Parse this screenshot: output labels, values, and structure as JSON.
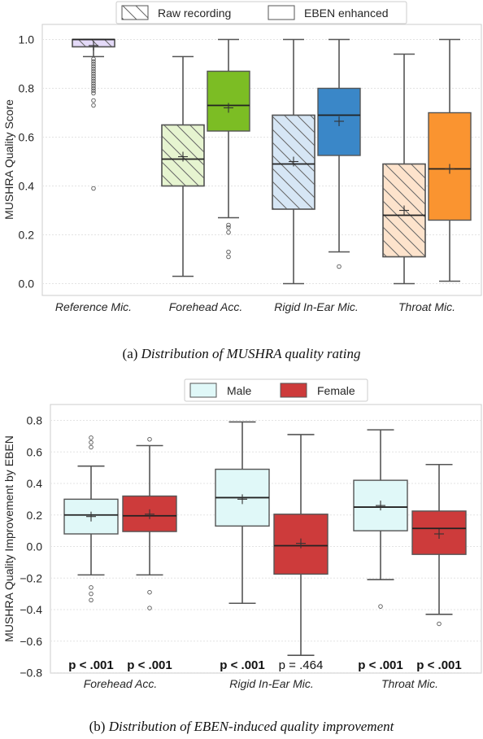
{
  "chart_data": [
    {
      "type": "box",
      "title": "",
      "caption_prefix": "(a)",
      "caption": "Distribution of MUSHRA quality rating",
      "ylabel": "MUSHRA Quality Score",
      "xlabel": "",
      "ylim": [
        -0.03,
        1.03
      ],
      "yticks": [
        "0.0",
        "0.2",
        "0.4",
        "0.6",
        "0.8",
        "1.0"
      ],
      "grid": true,
      "legend_position": "top-center",
      "categories": [
        "Reference Mic.",
        "Forehead Acc.",
        "Rigid In-Ear Mic.",
        "Throat Mic."
      ],
      "series": [
        {
          "name": "Raw recording",
          "hatched": true
        },
        {
          "name": "EBEN enhanced",
          "hatched": false
        }
      ],
      "boxes": [
        {
          "category": "Reference Mic.",
          "series": "Raw recording",
          "color": "#e4daf8",
          "whisker_low": 0.93,
          "q1": 0.97,
          "median": 1.0,
          "q3": 1.0,
          "whisker_high": 1.0,
          "mean": 0.975,
          "outliers": [
            0.92,
            0.91,
            0.9,
            0.89,
            0.88,
            0.87,
            0.86,
            0.85,
            0.84,
            0.83,
            0.82,
            0.81,
            0.8,
            0.79,
            0.78,
            0.75,
            0.73,
            0.39
          ]
        },
        {
          "category": "Forehead Acc.",
          "series": "Raw recording",
          "color": "#e6f4d0",
          "whisker_low": 0.03,
          "q1": 0.4,
          "median": 0.51,
          "q3": 0.65,
          "whisker_high": 0.93,
          "mean": 0.52,
          "outliers": []
        },
        {
          "category": "Forehead Acc.",
          "series": "EBEN enhanced",
          "color": "#7cbd24",
          "whisker_low": 0.27,
          "q1": 0.625,
          "median": 0.73,
          "q3": 0.87,
          "whisker_high": 1.0,
          "mean": 0.72,
          "outliers": [
            0.24,
            0.23,
            0.21,
            0.13,
            0.11
          ]
        },
        {
          "category": "Rigid In-Ear Mic.",
          "series": "Raw recording",
          "color": "#d6e6f5",
          "whisker_low": 0.0,
          "q1": 0.305,
          "median": 0.49,
          "q3": 0.69,
          "whisker_high": 1.0,
          "mean": 0.5,
          "outliers": []
        },
        {
          "category": "Rigid In-Ear Mic.",
          "series": "EBEN enhanced",
          "color": "#3a87c8",
          "whisker_low": 0.13,
          "q1": 0.525,
          "median": 0.69,
          "q3": 0.8,
          "whisker_high": 1.0,
          "mean": 0.665,
          "outliers": [
            0.07
          ]
        },
        {
          "category": "Throat Mic.",
          "series": "Raw recording",
          "color": "#fde3cc",
          "whisker_low": 0.0,
          "q1": 0.11,
          "median": 0.28,
          "q3": 0.49,
          "whisker_high": 0.94,
          "mean": 0.3,
          "outliers": []
        },
        {
          "category": "Throat Mic.",
          "series": "EBEN enhanced",
          "color": "#fa9430",
          "whisker_low": 0.01,
          "q1": 0.26,
          "median": 0.47,
          "q3": 0.7,
          "whisker_high": 1.0,
          "mean": 0.47,
          "outliers": []
        }
      ]
    },
    {
      "type": "box",
      "title": "",
      "caption_prefix": "(b)",
      "caption": "Distribution of EBEN-induced quality improvement",
      "ylabel": "MUSHRA Quality Improvement by EBEN",
      "xlabel": "",
      "ylim": [
        -0.8,
        0.9
      ],
      "yticks": [
        "−0.8",
        "−0.6",
        "−0.4",
        "−0.2",
        "0.0",
        "0.2",
        "0.4",
        "0.6",
        "0.8"
      ],
      "grid": true,
      "legend_position": "top-center",
      "categories": [
        "Forehead Acc.",
        "Rigid In-Ear Mic.",
        "Throat Mic."
      ],
      "series": [
        {
          "name": "Male",
          "color": "#e0f8f8"
        },
        {
          "name": "Female",
          "color": "#cd3b3b"
        }
      ],
      "boxes": [
        {
          "category": "Forehead Acc.",
          "series": "Male",
          "color": "#e0f8f8",
          "whisker_low": -0.18,
          "q1": 0.08,
          "median": 0.2,
          "q3": 0.3,
          "whisker_high": 0.51,
          "mean": 0.19,
          "outliers": [
            0.69,
            0.66,
            0.63,
            -0.26,
            -0.3,
            -0.34
          ],
          "p_value": "p < .001",
          "p_bold": true
        },
        {
          "category": "Forehead Acc.",
          "series": "Female",
          "color": "#cd3b3b",
          "whisker_low": -0.18,
          "q1": 0.095,
          "median": 0.195,
          "q3": 0.32,
          "whisker_high": 0.64,
          "mean": 0.205,
          "outliers": [
            0.68,
            -0.29,
            -0.39
          ],
          "p_value": "p < .001",
          "p_bold": true
        },
        {
          "category": "Rigid In-Ear Mic.",
          "series": "Male",
          "color": "#e0f8f8",
          "whisker_low": -0.36,
          "q1": 0.13,
          "median": 0.31,
          "q3": 0.49,
          "whisker_high": 0.79,
          "mean": 0.3,
          "outliers": [],
          "p_value": "p < .001",
          "p_bold": true
        },
        {
          "category": "Rigid In-Ear Mic.",
          "series": "Female",
          "color": "#cd3b3b",
          "whisker_low": -0.69,
          "q1": -0.175,
          "median": 0.005,
          "q3": 0.205,
          "whisker_high": 0.71,
          "mean": 0.02,
          "outliers": [],
          "p_value": "p = .464",
          "p_bold": false
        },
        {
          "category": "Throat Mic.",
          "series": "Male",
          "color": "#e0f8f8",
          "whisker_low": -0.21,
          "q1": 0.1,
          "median": 0.25,
          "q3": 0.42,
          "whisker_high": 0.74,
          "mean": 0.26,
          "outliers": [
            -0.38
          ],
          "p_value": "p < .001",
          "p_bold": true
        },
        {
          "category": "Throat Mic.",
          "series": "Female",
          "color": "#cd3b3b",
          "whisker_low": -0.43,
          "q1": -0.05,
          "median": 0.115,
          "q3": 0.225,
          "whisker_high": 0.52,
          "mean": 0.08,
          "outliers": [
            -0.49
          ],
          "p_value": "p < .001",
          "p_bold": true
        }
      ]
    }
  ]
}
